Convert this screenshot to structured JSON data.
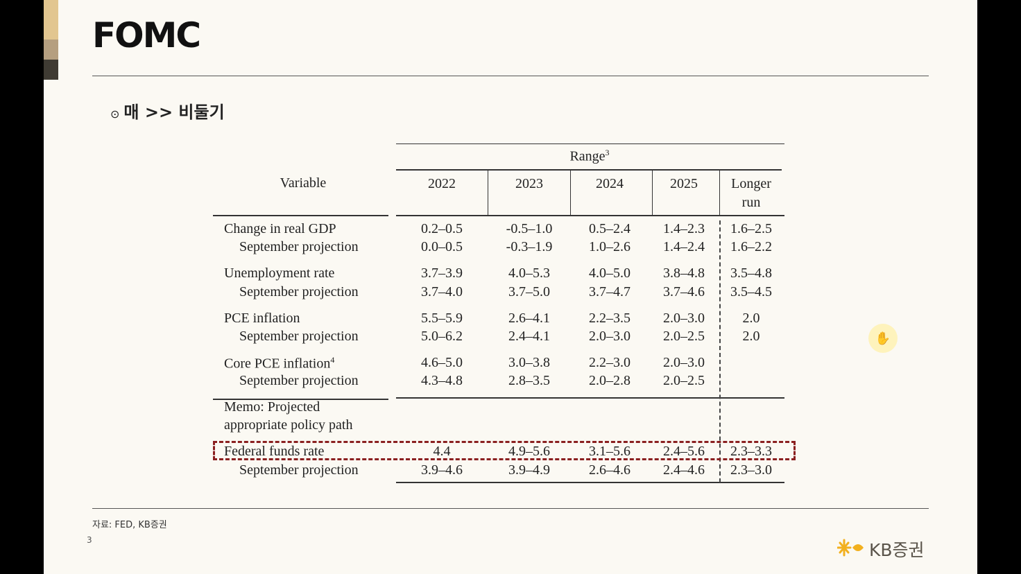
{
  "slide": {
    "title": "FOMC",
    "subheading_bullet": "⊙",
    "subheading": "매 >> 비둘기",
    "source": "자료: FED, KB증권",
    "page_number": "3",
    "logo_text": "KB증권",
    "logo_icon": "kb-star-icon",
    "cursor_icon": "hand-cursor-icon"
  },
  "table": {
    "range_header": "Range",
    "range_footnote": "3",
    "variable_header": "Variable",
    "columns": [
      "2022",
      "2023",
      "2024",
      "2025",
      "Longer",
      "run"
    ],
    "rows": {
      "gdp": {
        "label": "Change in real GDP",
        "values": [
          "0.2–0.5",
          "-0.5–1.0",
          "0.5–2.4",
          "1.4–2.3",
          "1.6–2.5"
        ]
      },
      "gdp_sep": {
        "label": "September projection",
        "values": [
          "0.0–0.5",
          "-0.3–1.9",
          "1.0–2.6",
          "1.4–2.4",
          "1.6–2.2"
        ]
      },
      "unemp": {
        "label": "Unemployment rate",
        "values": [
          "3.7–3.9",
          "4.0–5.3",
          "4.0–5.0",
          "3.8–4.8",
          "3.5–4.8"
        ]
      },
      "unemp_sep": {
        "label": "September projection",
        "values": [
          "3.7–4.0",
          "3.7–5.0",
          "3.7–4.7",
          "3.7–4.6",
          "3.5–4.5"
        ]
      },
      "pce": {
        "label": "PCE inflation",
        "values": [
          "5.5–5.9",
          "2.6–4.1",
          "2.2–3.5",
          "2.0–3.0",
          "2.0"
        ]
      },
      "pce_sep": {
        "label": "September projection",
        "values": [
          "5.0–6.2",
          "2.4–4.1",
          "2.0–3.0",
          "2.0–2.5",
          "2.0"
        ]
      },
      "core": {
        "label": "Core PCE inflation",
        "footnote": "4",
        "values": [
          "4.6–5.0",
          "3.0–3.8",
          "2.2–3.0",
          "2.0–3.0"
        ]
      },
      "core_sep": {
        "label": "September projection",
        "values": [
          "4.3–4.8",
          "2.8–3.5",
          "2.0–2.8",
          "2.0–2.5"
        ]
      },
      "memo1": {
        "label": "Memo: Projected"
      },
      "memo2": {
        "label": "appropriate policy path"
      },
      "ffr": {
        "label": "Federal funds rate",
        "values": [
          "4.4",
          "4.9–5.6",
          "3.1–5.6",
          "2.4–5.6",
          "2.3–3.3"
        ]
      },
      "ffr_sep": {
        "label": "September projection",
        "values": [
          "3.9–4.6",
          "3.9–4.9",
          "2.6–4.6",
          "2.4–4.6",
          "2.3–3.0"
        ]
      }
    }
  },
  "colors": {
    "slide_bg": "#fbf9f3",
    "highlight_border": "#8b2020",
    "accent_gold": "#e2c690"
  }
}
